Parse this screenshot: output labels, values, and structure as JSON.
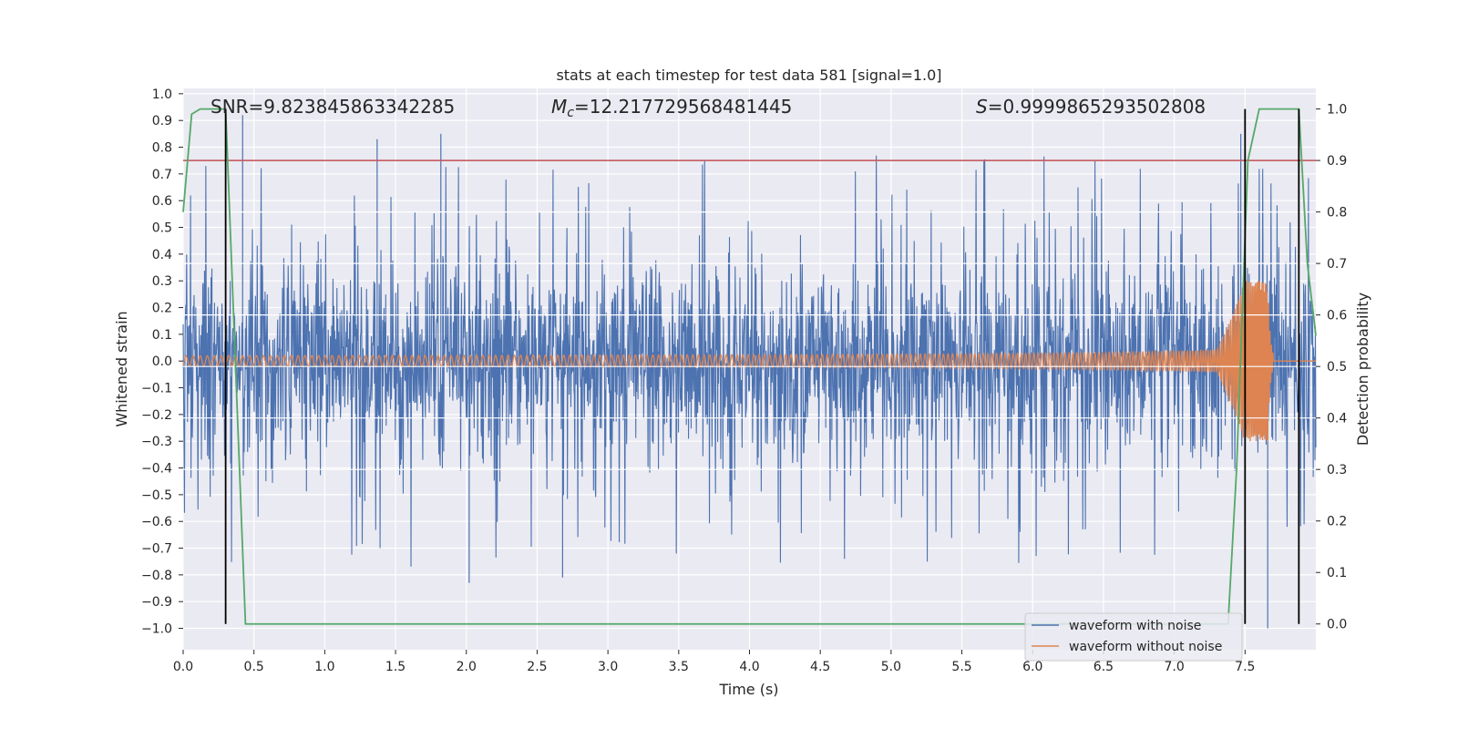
{
  "chart_data": {
    "type": "line",
    "title": "stats at each timestep for test data 581 [signal=1.0]",
    "xlabel": "Time (s)",
    "ylabel": "Whitened strain",
    "ylabel_right": "Detection probability",
    "xlim": [
      0.0,
      8.0
    ],
    "ylim": [
      -1.08,
      1.02
    ],
    "ylim_right": [
      -0.05,
      1.04
    ],
    "x_ticks": [
      0.0,
      0.5,
      1.0,
      1.5,
      2.0,
      2.5,
      3.0,
      3.5,
      4.0,
      4.5,
      5.0,
      5.5,
      6.0,
      6.5,
      7.0,
      7.5
    ],
    "x_tick_labels": [
      "0.0",
      "0.5",
      "1.0",
      "1.5",
      "2.0",
      "2.5",
      "3.0",
      "3.5",
      "4.0",
      "4.5",
      "5.0",
      "5.5",
      "6.0",
      "6.5",
      "7.0",
      "7.5"
    ],
    "y_ticks": [
      1.0,
      0.9,
      0.8,
      0.7,
      0.6,
      0.5,
      0.4,
      0.3,
      0.2,
      0.1,
      0.0,
      -0.1,
      -0.2,
      -0.3,
      -0.4,
      -0.5,
      -0.6,
      -0.7,
      -0.8,
      -0.9,
      -1.0
    ],
    "y_tick_labels": [
      "1.0",
      "0.9",
      "0.8",
      "0.7",
      "0.6",
      "0.5",
      "0.4",
      "0.3",
      "0.2",
      "0.1",
      "0.0",
      "−0.1",
      "−0.2",
      "−0.3",
      "−0.4",
      "−0.5",
      "−0.6",
      "−0.7",
      "−0.8",
      "−0.9",
      "−1.0"
    ],
    "y_right_ticks": [
      1.0,
      0.9,
      0.8,
      0.7,
      0.6,
      0.5,
      0.4,
      0.3,
      0.2,
      0.1,
      0.0
    ],
    "y_right_tick_labels": [
      "1.0",
      "0.9",
      "0.8",
      "0.7",
      "0.6",
      "0.5",
      "0.4",
      "0.3",
      "0.2",
      "0.1",
      "0.0"
    ],
    "grid": true,
    "legend_position": "bottom-right",
    "annotations": {
      "snr": "SNR=9.823845863342285",
      "mc_symbol": "M",
      "mc_subscript": "c",
      "mc_value": "=12.217729568481445",
      "s_symbol": "S",
      "s_value": "=0.9999865293502808"
    },
    "series": [
      {
        "name": "waveform with noise",
        "color": "#4c72b0",
        "axis": "left",
        "description_values": {
          "envelope_abs_typical": 0.35,
          "peak_max": 0.92,
          "peak_min": -1.0
        }
      },
      {
        "name": "waveform without noise",
        "color": "#dd8452",
        "axis": "left",
        "chirp": {
          "start_time": 0.0,
          "merger_time": 7.66,
          "start_amplitude": 0.02,
          "peak_amplitude": 0.3,
          "ringdown_min": -0.3
        }
      },
      {
        "color": "#55a868",
        "axis": "right",
        "x": [
          0.0,
          0.06,
          0.12,
          0.3,
          0.44,
          7.38,
          7.44,
          7.48,
          7.52,
          7.6,
          7.88,
          7.94,
          8.0
        ],
        "y": [
          0.8,
          0.99,
          1.0,
          1.0,
          0.0,
          0.0,
          0.3,
          0.6,
          0.9,
          1.0,
          1.0,
          0.7,
          0.56
        ]
      },
      {
        "color": "#c44e52",
        "axis": "right",
        "type": "hline",
        "y": 0.9
      }
    ],
    "vertical_lines": [
      {
        "x": 0.3,
        "color": "#000000",
        "ymin": 0.0,
        "ymax": 1.0,
        "axis": "right"
      },
      {
        "x": 7.5,
        "color": "#000000",
        "ymin": 0.0,
        "ymax": 1.0,
        "axis": "right"
      },
      {
        "x": 7.88,
        "color": "#000000",
        "ymin": 0.0,
        "ymax": 1.0,
        "axis": "right"
      }
    ],
    "right_grid_lines": [
      0.3,
      0.4,
      0.5,
      0.6,
      0.7,
      0.8,
      0.9
    ]
  }
}
